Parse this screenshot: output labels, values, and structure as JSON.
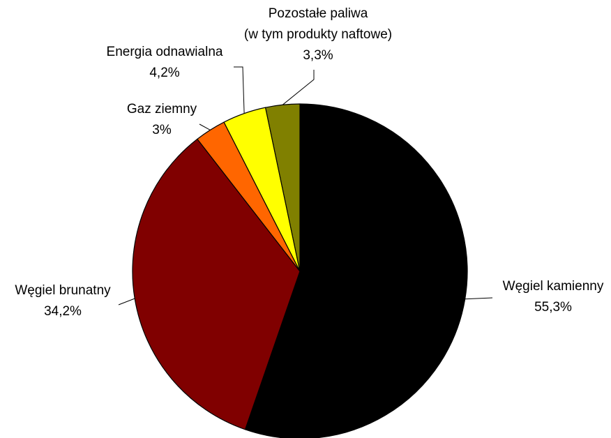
{
  "chart_data": {
    "type": "pie",
    "title": "",
    "start_angle_deg": 0,
    "direction": "clockwise",
    "legend": "none",
    "slices": [
      {
        "label": "Węgiel kamienny",
        "value": 55.3,
        "value_label": "55,3%",
        "color": "#000000"
      },
      {
        "label": "Węgiel brunatny",
        "value": 34.2,
        "value_label": "34,2%",
        "color": "#800000"
      },
      {
        "label": "Gaz ziemny",
        "value": 3.0,
        "value_label": "3%",
        "color": "#FF6600"
      },
      {
        "label": "Energia odnawialna",
        "value": 4.2,
        "value_label": "4,2%",
        "color": "#FFFF00"
      },
      {
        "label_lines": [
          "Pozostałe paliwa",
          "(w tym produkty naftowe)"
        ],
        "value": 3.3,
        "value_label": "3,3%",
        "color": "#808000"
      }
    ]
  }
}
